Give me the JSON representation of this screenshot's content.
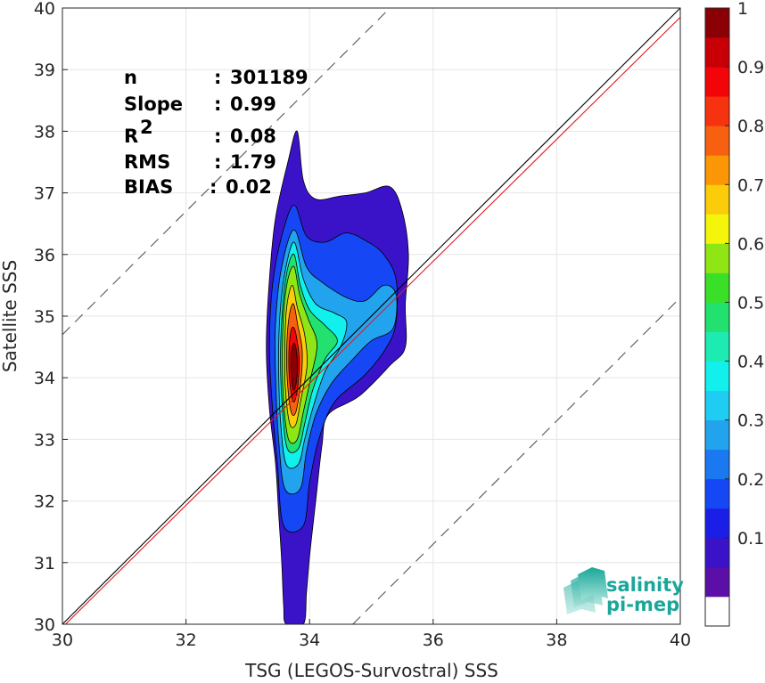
{
  "chart_data": {
    "type": "heatmap",
    "subtype": "contour-density-scatter",
    "xlabel": "TSG (LEGOS-Survostral) SSS",
    "ylabel": "Satellite SSS",
    "xlim": [
      30,
      40
    ],
    "ylim": [
      30,
      40
    ],
    "xticks": [
      "30",
      "32",
      "34",
      "36",
      "38",
      "40"
    ],
    "yticks": [
      "30",
      "31",
      "32",
      "33",
      "34",
      "35",
      "36",
      "37",
      "38",
      "39",
      "40"
    ],
    "grid": true,
    "stats": [
      {
        "label": "n",
        "sep": ":",
        "value": "301189"
      },
      {
        "label": "Slope",
        "sep": ":",
        "value": "0.99"
      },
      {
        "label": "R",
        "sup": "2",
        "sep": ":",
        "value": "0.08"
      },
      {
        "label": "RMS",
        "sep": ":",
        "value": "1.79"
      },
      {
        "label": "BIAS",
        "sep": ":",
        "value": "0.02"
      }
    ],
    "reference_lines": {
      "identity": {
        "x": [
          30,
          40
        ],
        "y": [
          30,
          40
        ],
        "color": "#000000",
        "style": "solid"
      },
      "regression": {
        "x": [
          30,
          40
        ],
        "y": [
          29.95,
          39.85
        ],
        "color": "#e31a1c",
        "style": "solid"
      },
      "upper_bound": {
        "x": [
          30,
          35.3
        ],
        "y": [
          34.7,
          40
        ],
        "color": "#555555",
        "style": "dashed"
      },
      "lower_bound": {
        "x": [
          34.7,
          40
        ],
        "y": [
          30,
          35.3
        ],
        "color": "#555555",
        "style": "dashed"
      }
    },
    "contours": [
      {
        "level": 0.05,
        "points": [
          [
            33.62,
            30.0
          ],
          [
            33.58,
            30.3
          ],
          [
            33.55,
            31.0
          ],
          [
            33.5,
            31.8
          ],
          [
            33.45,
            32.6
          ],
          [
            33.35,
            33.5
          ],
          [
            33.3,
            34.5
          ],
          [
            33.35,
            35.6
          ],
          [
            33.45,
            36.6
          ],
          [
            33.65,
            37.5
          ],
          [
            33.8,
            38.0
          ],
          [
            33.9,
            37.2
          ],
          [
            34.1,
            36.9
          ],
          [
            34.5,
            36.95
          ],
          [
            34.9,
            37.0
          ],
          [
            35.3,
            37.1
          ],
          [
            35.5,
            36.7
          ],
          [
            35.6,
            36.0
          ],
          [
            35.55,
            35.2
          ],
          [
            35.55,
            34.5
          ],
          [
            35.3,
            34.2
          ],
          [
            34.8,
            33.7
          ],
          [
            34.3,
            33.4
          ],
          [
            34.2,
            32.9
          ],
          [
            34.1,
            32.0
          ],
          [
            34.0,
            31.1
          ],
          [
            33.95,
            30.5
          ],
          [
            33.9,
            30.0
          ]
        ]
      },
      {
        "level": 0.15,
        "points": [
          [
            33.58,
            31.6
          ],
          [
            33.48,
            32.6
          ],
          [
            33.4,
            33.5
          ],
          [
            33.35,
            34.5
          ],
          [
            33.4,
            35.5
          ],
          [
            33.55,
            36.3
          ],
          [
            33.75,
            36.8
          ],
          [
            33.95,
            36.3
          ],
          [
            34.25,
            36.2
          ],
          [
            34.6,
            36.35
          ],
          [
            34.95,
            36.2
          ],
          [
            35.2,
            36.0
          ],
          [
            35.4,
            35.6
          ],
          [
            35.4,
            34.9
          ],
          [
            35.25,
            34.5
          ],
          [
            34.9,
            34.05
          ],
          [
            34.4,
            33.6
          ],
          [
            34.15,
            33.0
          ],
          [
            34.0,
            32.3
          ],
          [
            33.9,
            31.6
          ]
        ]
      },
      {
        "level": 0.25,
        "points": [
          [
            33.6,
            32.2
          ],
          [
            33.5,
            33.0
          ],
          [
            33.45,
            34.0
          ],
          [
            33.45,
            34.9
          ],
          [
            33.55,
            35.8
          ],
          [
            33.75,
            36.4
          ],
          [
            33.95,
            35.8
          ],
          [
            34.2,
            35.55
          ],
          [
            34.6,
            35.3
          ],
          [
            34.9,
            35.25
          ],
          [
            35.2,
            35.5
          ],
          [
            35.4,
            35.35
          ],
          [
            35.35,
            34.8
          ],
          [
            35.0,
            34.6
          ],
          [
            34.7,
            34.3
          ],
          [
            34.35,
            33.9
          ],
          [
            34.1,
            33.4
          ],
          [
            33.95,
            32.8
          ],
          [
            33.85,
            32.2
          ]
        ]
      },
      {
        "level": 0.35,
        "points": [
          [
            33.62,
            32.6
          ],
          [
            33.53,
            33.3
          ],
          [
            33.5,
            34.2
          ],
          [
            33.52,
            35.0
          ],
          [
            33.6,
            35.7
          ],
          [
            33.75,
            36.2
          ],
          [
            33.9,
            35.6
          ],
          [
            34.1,
            35.2
          ],
          [
            34.4,
            35.05
          ],
          [
            34.6,
            34.9
          ],
          [
            34.5,
            34.5
          ],
          [
            34.25,
            34.1
          ],
          [
            34.05,
            33.5
          ],
          [
            33.92,
            33.0
          ],
          [
            33.82,
            32.6
          ]
        ]
      },
      {
        "level": 0.45,
        "points": [
          [
            33.64,
            32.85
          ],
          [
            33.56,
            33.5
          ],
          [
            33.53,
            34.3
          ],
          [
            33.56,
            35.1
          ],
          [
            33.64,
            35.75
          ],
          [
            33.75,
            36.0
          ],
          [
            33.85,
            35.5
          ],
          [
            34.0,
            35.1
          ],
          [
            34.25,
            34.85
          ],
          [
            34.45,
            34.6
          ],
          [
            34.25,
            34.3
          ],
          [
            34.05,
            33.8
          ],
          [
            33.92,
            33.25
          ],
          [
            33.82,
            32.85
          ]
        ]
      },
      {
        "level": 0.55,
        "points": [
          [
            33.66,
            33.0
          ],
          [
            33.58,
            33.6
          ],
          [
            33.56,
            34.3
          ],
          [
            33.58,
            35.05
          ],
          [
            33.65,
            35.6
          ],
          [
            33.75,
            35.8
          ],
          [
            33.84,
            35.35
          ],
          [
            33.98,
            34.95
          ],
          [
            34.12,
            34.55
          ],
          [
            34.02,
            34.0
          ],
          [
            33.9,
            33.45
          ],
          [
            33.8,
            33.0
          ]
        ]
      },
      {
        "level": 0.65,
        "points": [
          [
            33.68,
            33.25
          ],
          [
            33.61,
            33.8
          ],
          [
            33.6,
            34.5
          ],
          [
            33.63,
            35.15
          ],
          [
            33.72,
            35.5
          ],
          [
            33.8,
            35.15
          ],
          [
            33.92,
            34.7
          ],
          [
            33.96,
            34.2
          ],
          [
            33.86,
            33.65
          ],
          [
            33.78,
            33.25
          ]
        ]
      },
      {
        "level": 0.75,
        "points": [
          [
            33.7,
            33.45
          ],
          [
            33.64,
            33.95
          ],
          [
            33.63,
            34.5
          ],
          [
            33.67,
            35.0
          ],
          [
            33.74,
            35.2
          ],
          [
            33.81,
            34.85
          ],
          [
            33.88,
            34.45
          ],
          [
            33.86,
            33.95
          ],
          [
            33.78,
            33.45
          ]
        ]
      },
      {
        "level": 0.85,
        "points": [
          [
            33.72,
            33.65
          ],
          [
            33.67,
            34.05
          ],
          [
            33.67,
            34.5
          ],
          [
            33.71,
            34.8
          ],
          [
            33.77,
            34.75
          ],
          [
            33.83,
            34.35
          ],
          [
            33.82,
            33.95
          ],
          [
            33.77,
            33.65
          ]
        ]
      },
      {
        "level": 0.95,
        "points": [
          [
            33.74,
            33.8
          ],
          [
            33.7,
            34.1
          ],
          [
            33.71,
            34.45
          ],
          [
            33.76,
            34.55
          ],
          [
            33.8,
            34.3
          ],
          [
            33.79,
            33.95
          ]
        ]
      }
    ],
    "colorbar": {
      "levels": [
        "0",
        "0.05",
        "0.1",
        "0.15",
        "0.2",
        "0.25",
        "0.3",
        "0.35",
        "0.4",
        "0.45",
        "0.5",
        "0.55",
        "0.6",
        "0.65",
        "0.7",
        "0.75",
        "0.8",
        "0.85",
        "0.9",
        "0.95",
        "1"
      ],
      "colors": [
        "#ffffff",
        "#5b0fa6",
        "#3a13c8",
        "#1b1ee6",
        "#1547f5",
        "#1a78f0",
        "#22a3ee",
        "#1fcdf2",
        "#12f0ee",
        "#1cebb2",
        "#22e16e",
        "#3ae028",
        "#90e514",
        "#f4f50a",
        "#fbcc0a",
        "#fb9606",
        "#f76010",
        "#f7330f",
        "#f20408",
        "#c80006",
        "#8a0005"
      ],
      "ticks": [
        "0.1",
        "0.2",
        "0.3",
        "0.4",
        "0.5",
        "0.6",
        "0.7",
        "0.8",
        "0.9",
        "1"
      ],
      "tick_values": [
        0.1,
        0.2,
        0.3,
        0.4,
        0.5,
        0.6,
        0.7,
        0.8,
        0.9,
        1.0
      ]
    }
  },
  "logo": {
    "line1": "salinity",
    "line2": "pi-mep",
    "color": "#1aa79a"
  }
}
